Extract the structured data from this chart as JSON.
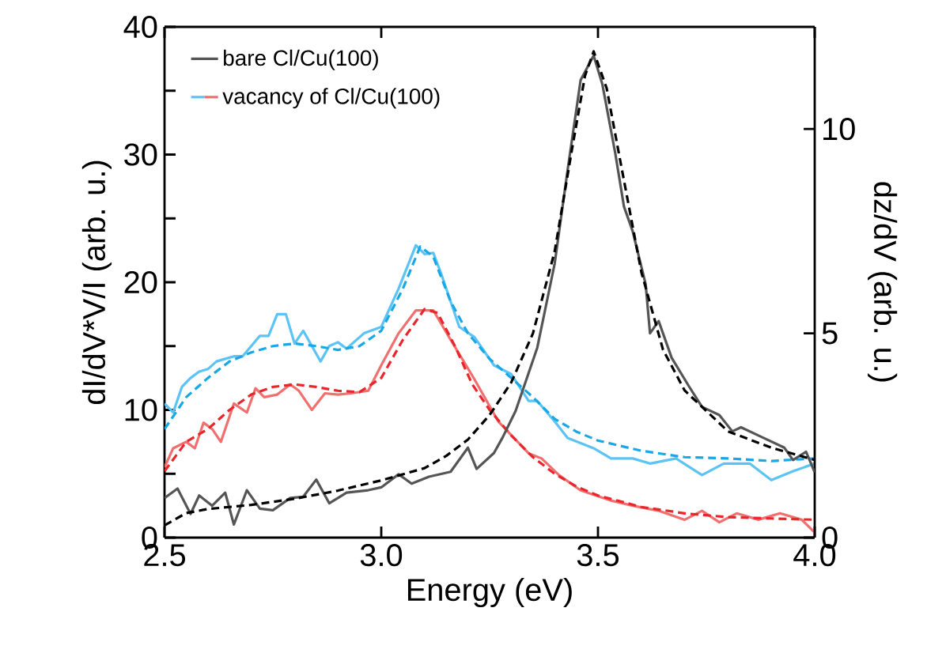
{
  "chart_data": {
    "type": "line",
    "xlabel": "Energy (eV)",
    "ylabel": "dI/dV*V/I (arb. u.)",
    "y2label": "dz/dV (arb. u.)",
    "xlim": [
      2.5,
      4.0
    ],
    "xticks": [
      2.5,
      {
        "value": 3.0,
        "label": "3.0"
      },
      3.5,
      {
        "value": 4.0,
        "label": "4.0"
      }
    ],
    "ylim": [
      0,
      40
    ],
    "yticks": [
      0,
      {
        "value": 5,
        "label": null
      },
      10,
      {
        "value": 15,
        "label": null
      },
      20,
      {
        "value": 25,
        "label": null
      },
      30,
      {
        "value": 35,
        "label": null
      },
      40
    ],
    "y2lim": [
      0,
      12.5
    ],
    "y2ticks": [
      0,
      5,
      10
    ],
    "legend": "top left",
    "grid": false,
    "marker": "none",
    "series": [
      {
        "name": "bare Cl/Cu(100)",
        "color": "#555555",
        "axis": "y2",
        "line_style": "solid",
        "x": [
          2.5,
          2.53,
          2.56,
          2.58,
          2.61,
          2.64,
          2.66,
          2.69,
          2.72,
          2.75,
          2.79,
          2.82,
          2.85,
          2.88,
          2.92,
          2.97,
          3.0,
          3.04,
          3.07,
          3.11,
          3.16,
          3.2,
          3.22,
          3.26,
          3.28,
          3.31,
          3.36,
          3.4,
          3.43,
          3.46,
          3.49,
          3.51,
          3.54,
          3.56,
          3.58,
          3.61,
          3.62,
          3.64,
          3.67,
          3.71,
          3.74,
          3.78,
          3.81,
          3.83,
          3.88,
          3.93,
          3.95,
          3.98,
          4.0
        ],
        "values": [
          0.97,
          1.2,
          0.58,
          1.03,
          0.78,
          1.1,
          0.32,
          1.16,
          0.71,
          0.67,
          0.97,
          1.0,
          1.42,
          0.84,
          1.1,
          1.16,
          1.23,
          1.55,
          1.32,
          1.49,
          1.61,
          2.2,
          1.68,
          2.07,
          2.45,
          3.1,
          4.65,
          6.7,
          9.0,
          11.2,
          11.8,
          11.1,
          9.4,
          8.1,
          7.5,
          6.2,
          5.0,
          5.3,
          4.4,
          3.7,
          3.2,
          3.0,
          2.6,
          2.7,
          2.45,
          2.2,
          1.9,
          2.1,
          1.6
        ]
      },
      {
        "color": "#000000",
        "axis": "y2",
        "line_style": "dashed",
        "x": [
          2.5,
          2.55,
          2.6,
          2.7,
          2.8,
          2.9,
          3.0,
          3.1,
          3.15,
          3.2,
          3.25,
          3.3,
          3.35,
          3.4,
          3.44,
          3.47,
          3.49,
          3.52,
          3.55,
          3.6,
          3.65,
          3.7,
          3.8,
          3.9,
          4.0
        ],
        "values": [
          0.3,
          0.6,
          0.7,
          0.8,
          0.95,
          1.15,
          1.4,
          1.7,
          2.0,
          2.4,
          3.0,
          3.8,
          5.0,
          7.0,
          9.5,
          11.3,
          11.9,
          11.0,
          9.3,
          6.5,
          4.6,
          3.6,
          2.6,
          2.2,
          1.9
        ]
      },
      {
        "name": "vacancy of Cl/Cu(100)",
        "color": "#5bc4f5",
        "line_style": "solid",
        "x": [
          2.5,
          2.52,
          2.54,
          2.56,
          2.58,
          2.6,
          2.62,
          2.64,
          2.66,
          2.68,
          2.7,
          2.72,
          2.74,
          2.76,
          2.78,
          2.8,
          2.82,
          2.84,
          2.86,
          2.88,
          2.9,
          2.92,
          2.96,
          3.0,
          3.04,
          3.08,
          3.1,
          3.12,
          3.14,
          3.18,
          3.215,
          3.26,
          3.3,
          3.34,
          3.36,
          3.4,
          3.43,
          3.49,
          3.53,
          3.58,
          3.62,
          3.68,
          3.74,
          3.79,
          3.85,
          3.9,
          3.95,
          4.0
        ],
        "values": [
          10.5,
          9.8,
          11.8,
          12.5,
          13.0,
          13.2,
          13.8,
          14.0,
          14.2,
          14.2,
          15.0,
          15.8,
          15.8,
          17.5,
          17.5,
          15.2,
          16.2,
          15.0,
          13.8,
          15.0,
          15.3,
          14.8,
          16.0,
          16.5,
          19.5,
          22.9,
          22.2,
          22.3,
          20.5,
          16.5,
          15.7,
          13.5,
          12.8,
          10.7,
          10.7,
          9.1,
          7.8,
          7.0,
          6.2,
          6.2,
          5.8,
          6.2,
          4.9,
          5.8,
          5.8,
          4.5,
          5.2,
          5.8
        ]
      },
      {
        "color": "#1aa7e6",
        "line_style": "dashed",
        "x": [
          2.5,
          2.55,
          2.6,
          2.65,
          2.7,
          2.75,
          2.8,
          2.85,
          2.9,
          2.95,
          3.0,
          3.05,
          3.09,
          3.12,
          3.16,
          3.2,
          3.25,
          3.3,
          3.35,
          3.4,
          3.45,
          3.5,
          3.6,
          3.7,
          3.8,
          3.9,
          4.0
        ],
        "values": [
          8.5,
          11.0,
          12.5,
          13.8,
          14.5,
          15.0,
          15.2,
          15.0,
          14.7,
          15.0,
          16.2,
          19.5,
          22.8,
          22.0,
          18.5,
          16.0,
          14.0,
          12.5,
          11.0,
          9.3,
          8.3,
          7.6,
          6.8,
          6.3,
          6.2,
          6.0,
          6.2
        ]
      },
      {
        "color": "#f07070",
        "line_style": "solid",
        "x": [
          2.5,
          2.52,
          2.55,
          2.57,
          2.59,
          2.61,
          2.63,
          2.66,
          2.69,
          2.71,
          2.73,
          2.76,
          2.79,
          2.81,
          2.84,
          2.87,
          2.9,
          2.93,
          2.97,
          3.0,
          3.04,
          3.08,
          3.12,
          3.16,
          3.215,
          3.27,
          3.34,
          3.37,
          3.41,
          3.46,
          3.53,
          3.58,
          3.64,
          3.7,
          3.74,
          3.78,
          3.82,
          3.87,
          3.92,
          3.97,
          4.0
        ],
        "values": [
          5.5,
          7.0,
          7.5,
          7.0,
          9.0,
          8.5,
          7.5,
          10.5,
          9.8,
          11.7,
          11.0,
          11.2,
          12.0,
          11.5,
          10.0,
          11.3,
          11.2,
          11.3,
          11.5,
          13.5,
          16.0,
          17.8,
          17.8,
          15.5,
          12.4,
          9.1,
          6.6,
          6.2,
          4.9,
          3.7,
          2.9,
          2.5,
          2.1,
          1.4,
          2.1,
          1.2,
          1.9,
          1.4,
          1.9,
          1.4,
          0.4
        ]
      },
      {
        "color": "#e8262b",
        "line_style": "dashed",
        "x": [
          2.5,
          2.55,
          2.6,
          2.65,
          2.7,
          2.75,
          2.8,
          2.85,
          2.9,
          2.95,
          3.0,
          3.05,
          3.1,
          3.13,
          3.17,
          3.21,
          3.25,
          3.3,
          3.35,
          3.4,
          3.45,
          3.5,
          3.6,
          3.7,
          3.8,
          3.9,
          4.0
        ],
        "values": [
          5.2,
          7.5,
          8.5,
          10.0,
          11.2,
          11.8,
          12.0,
          11.8,
          11.5,
          11.4,
          12.5,
          15.5,
          17.9,
          17.6,
          15.0,
          12.0,
          10.0,
          8.0,
          6.3,
          5.0,
          4.0,
          3.3,
          2.4,
          1.9,
          1.6,
          1.5,
          1.4
        ]
      }
    ]
  }
}
